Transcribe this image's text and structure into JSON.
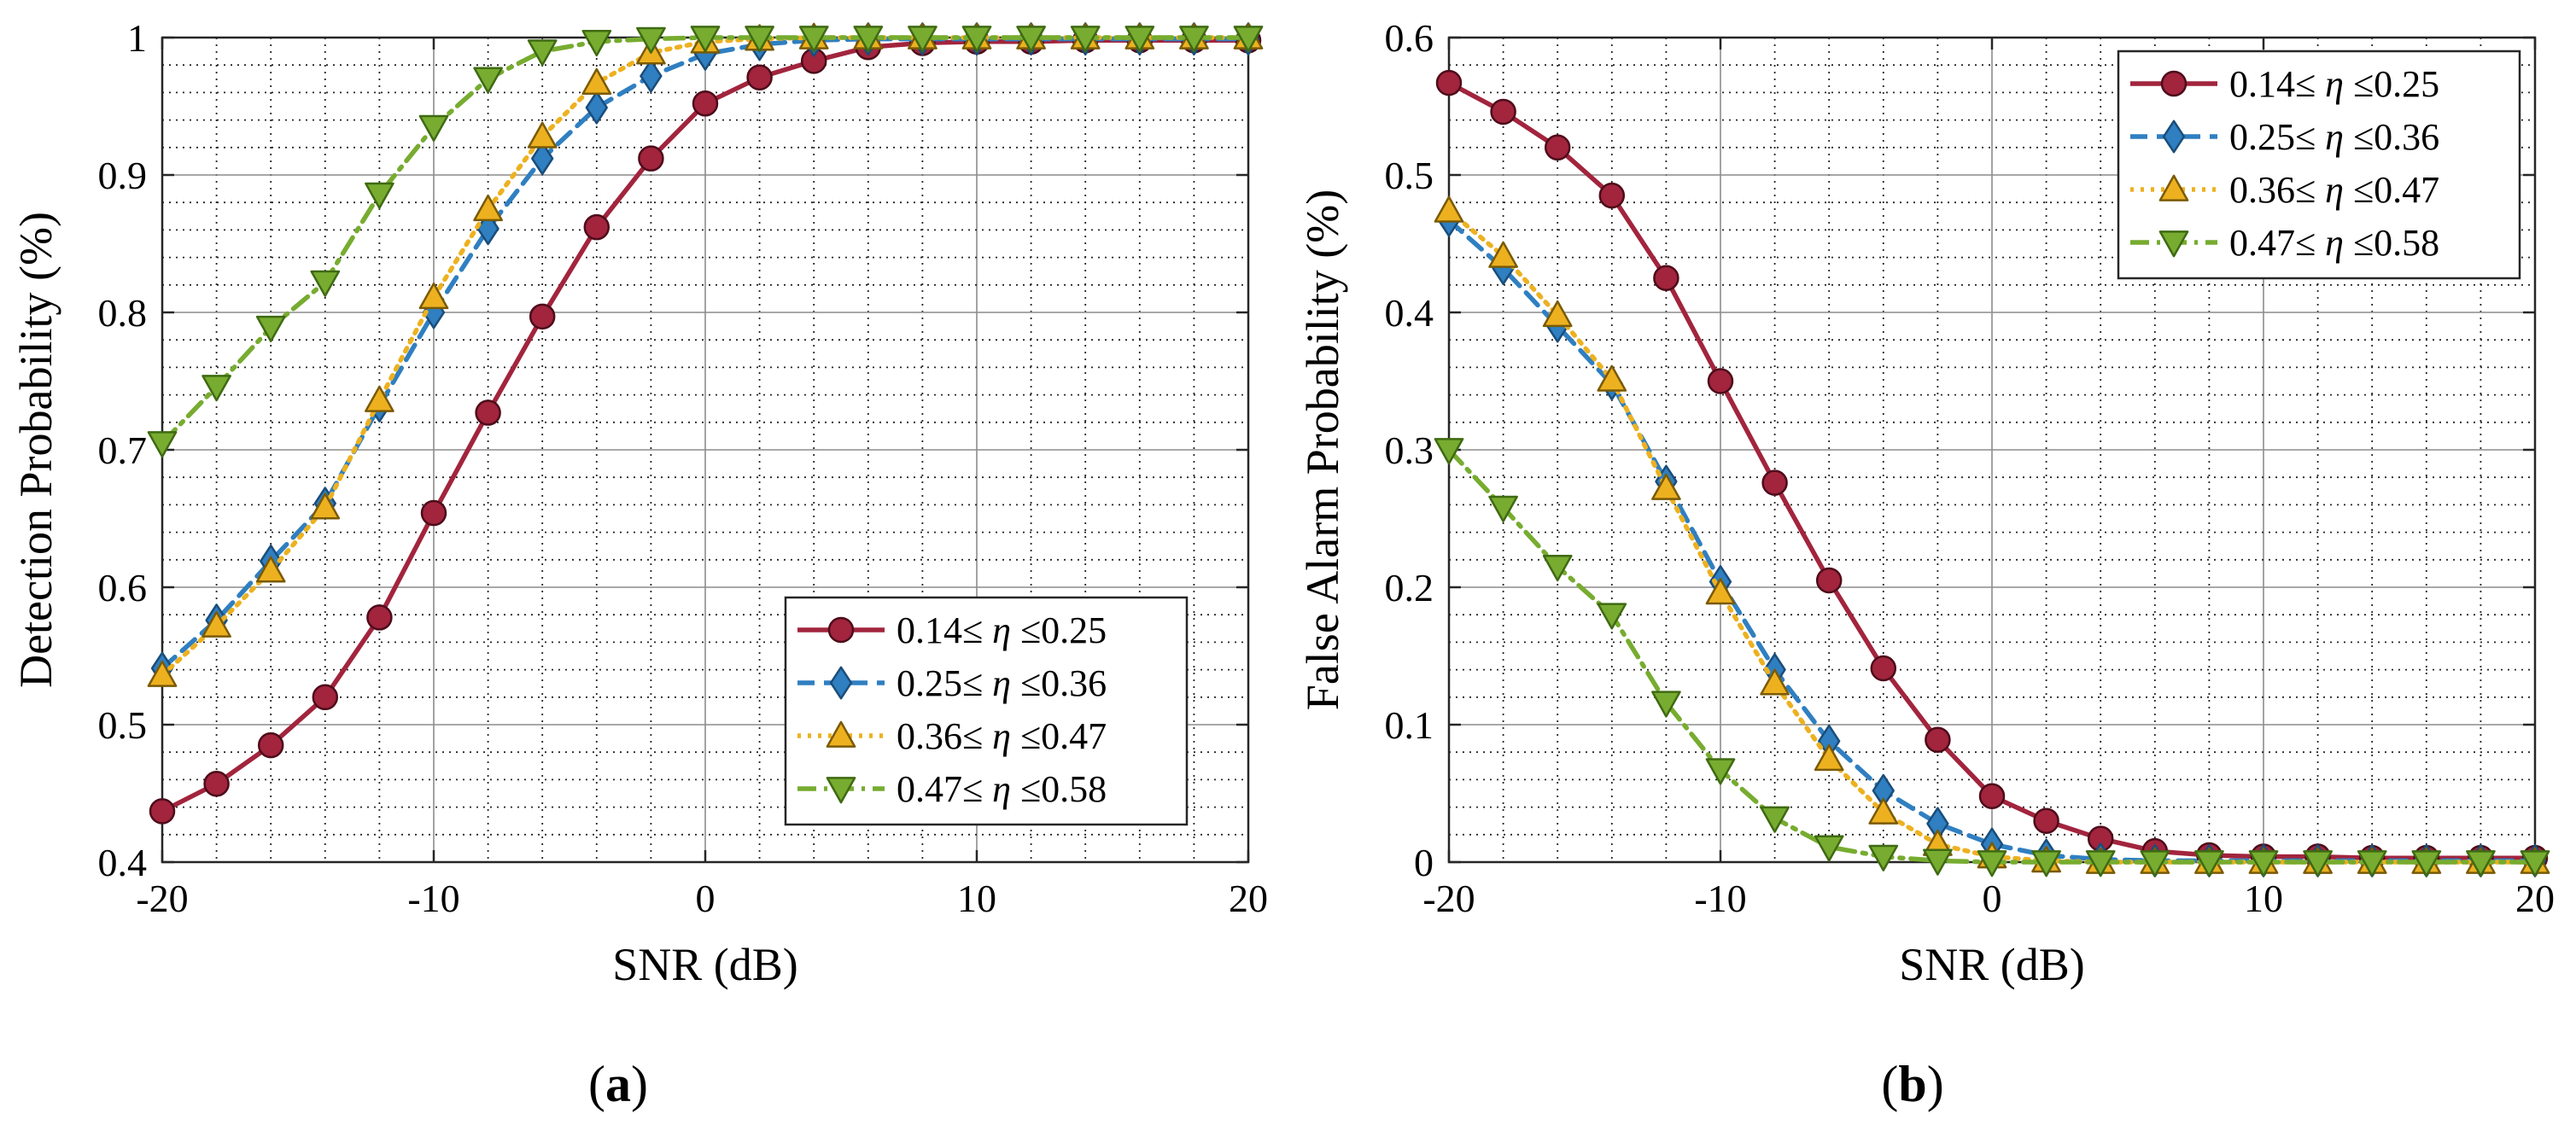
{
  "chart_data": [
    {
      "type": "line",
      "panel": "a",
      "caption_letter": "a",
      "xlabel": "SNR (dB)",
      "ylabel": "Detection Probability (%)",
      "xlim": [
        -20,
        20
      ],
      "ylim": [
        0.4,
        1
      ],
      "xticks": [
        -20,
        -10,
        0,
        10,
        20
      ],
      "xtick_labels": [
        "-20",
        "-10",
        "0",
        "10",
        "20"
      ],
      "yticks": [
        0.4,
        0.5,
        0.6,
        0.7,
        0.8,
        0.9,
        1
      ],
      "ytick_labels": [
        "0.4",
        "0.5",
        "0.6",
        "0.7",
        "0.8",
        "0.9",
        "1"
      ],
      "grid": true,
      "legend_position": "bottom-right",
      "x": [
        -20,
        -18,
        -16,
        -14,
        -12,
        -10,
        -8,
        -6,
        -4,
        -2,
        0,
        2,
        4,
        6,
        8,
        10,
        12,
        14,
        16,
        18,
        20
      ],
      "series": [
        {
          "name": "0.14≤ η ≤0.25",
          "label_left": "0.14≤ ",
          "label_sym": "η",
          "label_right": " ≤0.25",
          "color": "#a2243d",
          "dash": "solid",
          "marker": "circle",
          "values": [
            0.437,
            0.457,
            0.485,
            0.52,
            0.578,
            0.654,
            0.727,
            0.797,
            0.862,
            0.912,
            0.952,
            0.971,
            0.983,
            0.993,
            0.996,
            0.997,
            0.997,
            0.998,
            0.998,
            0.998,
            0.998
          ]
        },
        {
          "name": "0.25≤ η ≤0.36",
          "label_left": "0.25≤ ",
          "label_sym": "η",
          "label_right": " ≤0.36",
          "color": "#2f7fc1",
          "dash": "dashed",
          "marker": "diamond",
          "values": [
            0.541,
            0.576,
            0.619,
            0.661,
            0.732,
            0.8,
            0.861,
            0.912,
            0.949,
            0.972,
            0.988,
            0.995,
            0.998,
            0.999,
            0.999,
            0.999,
            0.999,
            0.999,
            0.999,
            0.999,
            0.999
          ]
        },
        {
          "name": "0.36≤ η ≤0.47",
          "label_left": "0.36≤ ",
          "label_sym": "η",
          "label_right": " ≤0.47",
          "color": "#edb120",
          "dash": "dotted",
          "marker": "triangle-up",
          "values": [
            0.536,
            0.572,
            0.612,
            0.658,
            0.736,
            0.811,
            0.875,
            0.928,
            0.967,
            0.989,
            0.997,
            0.999,
            1,
            1,
            1,
            1,
            1,
            1,
            1,
            1,
            1
          ]
        },
        {
          "name": "0.47≤ η ≤0.58",
          "label_left": "0.47≤ ",
          "label_sym": "η",
          "label_right": " ≤0.58",
          "color": "#77ac30",
          "dash": "dashdot",
          "marker": "triangle-down",
          "values": [
            0.705,
            0.746,
            0.789,
            0.822,
            0.886,
            0.935,
            0.97,
            0.99,
            0.997,
            0.999,
            1,
            1,
            1,
            1,
            1,
            1,
            1,
            1,
            1,
            1,
            1
          ]
        }
      ]
    },
    {
      "type": "line",
      "panel": "b",
      "caption_letter": "b",
      "xlabel": "SNR (dB)",
      "ylabel": "False Alarm Probability (%)",
      "xlim": [
        -20,
        20
      ],
      "ylim": [
        0,
        0.6
      ],
      "xticks": [
        -20,
        -10,
        0,
        10,
        20
      ],
      "xtick_labels": [
        "-20",
        "-10",
        "0",
        "10",
        "20"
      ],
      "yticks": [
        0,
        0.1,
        0.2,
        0.3,
        0.4,
        0.5,
        0.6
      ],
      "ytick_labels": [
        "0",
        "0.1",
        "0.2",
        "0.3",
        "0.4",
        "0.5",
        "0.6"
      ],
      "grid": true,
      "legend_position": "top-right",
      "x": [
        -20,
        -18,
        -16,
        -14,
        -12,
        -10,
        -8,
        -6,
        -4,
        -2,
        0,
        2,
        4,
        6,
        8,
        10,
        12,
        14,
        16,
        18,
        20
      ],
      "series": [
        {
          "name": "0.14≤ η ≤0.25",
          "label_left": "0.14≤ ",
          "label_sym": "η",
          "label_right": " ≤0.25",
          "color": "#a2243d",
          "dash": "solid",
          "marker": "circle",
          "values": [
            0.567,
            0.546,
            0.52,
            0.485,
            0.425,
            0.35,
            0.276,
            0.205,
            0.141,
            0.089,
            0.048,
            0.03,
            0.017,
            0.008,
            0.005,
            0.004,
            0.004,
            0.003,
            0.003,
            0.003,
            0.003
          ]
        },
        {
          "name": "0.25≤ η ≤0.36",
          "label_left": "0.25≤ ",
          "label_sym": "η",
          "label_right": " ≤0.36",
          "color": "#2f7fc1",
          "dash": "dashed",
          "marker": "diamond",
          "values": [
            0.467,
            0.432,
            0.39,
            0.348,
            0.277,
            0.204,
            0.14,
            0.088,
            0.052,
            0.028,
            0.013,
            0.005,
            0.002,
            0.001,
            0.001,
            0.001,
            0.001,
            0.001,
            0.001,
            0.001,
            0.001
          ]
        },
        {
          "name": "0.36≤ η ≤0.47",
          "label_left": "0.36≤ ",
          "label_sym": "η",
          "label_right": " ≤0.47",
          "color": "#edb120",
          "dash": "dotted",
          "marker": "triangle-up",
          "values": [
            0.474,
            0.441,
            0.398,
            0.351,
            0.272,
            0.196,
            0.13,
            0.075,
            0.036,
            0.013,
            0.004,
            0.001,
            0,
            0,
            0,
            0,
            0,
            0,
            0,
            0,
            0
          ]
        },
        {
          "name": "0.47≤ η ≤0.58",
          "label_left": "0.47≤ ",
          "label_sym": "η",
          "label_right": " ≤0.58",
          "color": "#77ac30",
          "dash": "dashdot",
          "marker": "triangle-down",
          "values": [
            0.3,
            0.258,
            0.215,
            0.18,
            0.116,
            0.067,
            0.032,
            0.011,
            0.004,
            0.001,
            0,
            0,
            0,
            0,
            0,
            0,
            0,
            0,
            0,
            0,
            0
          ]
        }
      ]
    }
  ]
}
